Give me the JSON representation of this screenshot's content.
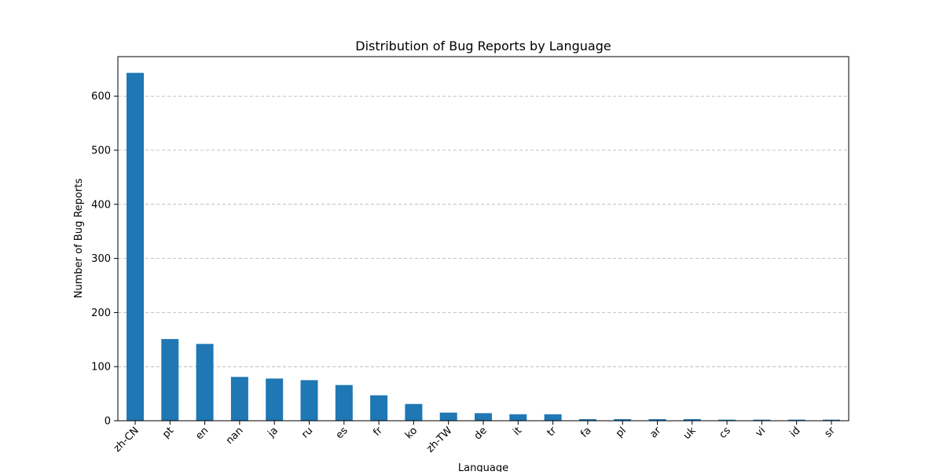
{
  "chart_data": {
    "type": "bar",
    "title": "Distribution of Bug Reports by Language",
    "xlabel": "Language",
    "ylabel": "Number of Bug Reports",
    "categories": [
      "zh-CN",
      "pt",
      "en",
      "nan",
      "ja",
      "ru",
      "es",
      "fr",
      "ko",
      "zh-TW",
      "de",
      "it",
      "tr",
      "fa",
      "pl",
      "ar",
      "uk",
      "cs",
      "vi",
      "id",
      "sr"
    ],
    "values": [
      643,
      151,
      142,
      81,
      78,
      75,
      66,
      47,
      31,
      15,
      14,
      12,
      12,
      3,
      3,
      3,
      3,
      2,
      2,
      2,
      2
    ],
    "ylim": [
      0,
      673
    ],
    "yticks": [
      0,
      100,
      200,
      300,
      400,
      500,
      600
    ],
    "grid": "horizontal",
    "bar_color": "#1f77b4"
  }
}
